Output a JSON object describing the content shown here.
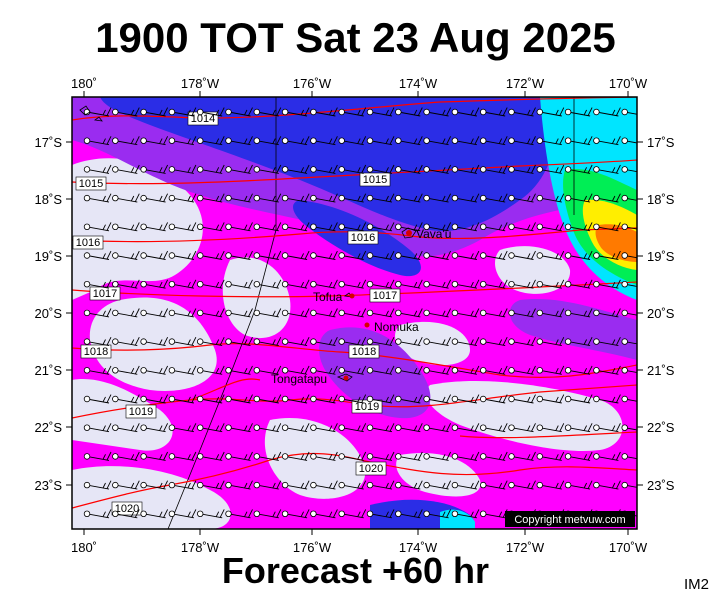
{
  "title": "1900 TOT Sat 23 Aug 2025",
  "footer": "Forecast +60 hr",
  "tag": "IM2",
  "copyright": "Copyright metvuw.com",
  "lon_labels": [
    "180˚",
    "178˚W",
    "176˚W",
    "174˚W",
    "172˚W",
    "170˚W"
  ],
  "lat_labels": [
    "17˚S",
    "18˚S",
    "19˚S",
    "20˚S",
    "21˚S",
    "22˚S",
    "23˚S"
  ],
  "isobars": [
    {
      "label": "1014"
    },
    {
      "label": "1015"
    },
    {
      "label": "1015"
    },
    {
      "label": "1016"
    },
    {
      "label": "1016"
    },
    {
      "label": "1017"
    },
    {
      "label": "1017"
    },
    {
      "label": "1018"
    },
    {
      "label": "1018"
    },
    {
      "label": "1019"
    },
    {
      "label": "1019"
    },
    {
      "label": "1020"
    },
    {
      "label": "1020"
    }
  ],
  "places": [
    "Vava'u",
    "Tofua",
    "Nomuka",
    "Tongatapu"
  ],
  "colors": {
    "background": "#e6e6f6",
    "magenta": "#ff00ff",
    "purple": "#9a2cf0",
    "blue": "#2b2de6",
    "cyan": "#00e5ff",
    "green": "#00ee55",
    "yellow": "#ffee00",
    "orange": "#ff7a00",
    "isobar": "#ff0000"
  }
}
